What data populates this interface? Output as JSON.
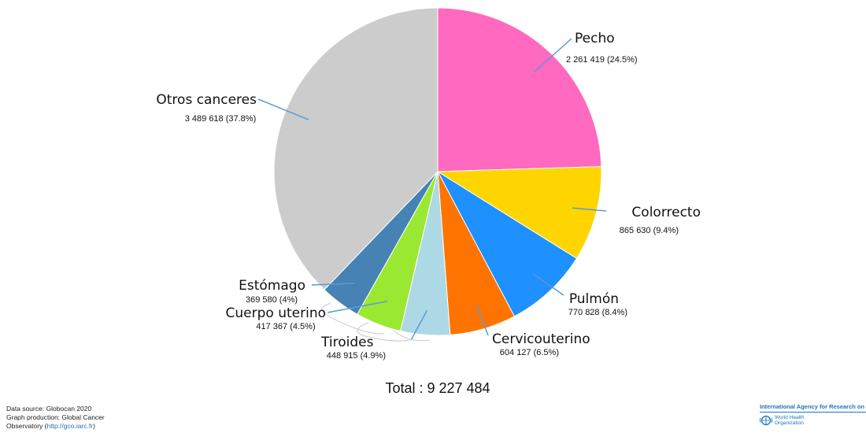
{
  "chart_data": {
    "type": "pie",
    "slices": [
      {
        "name": "Pecho",
        "value": 2261419,
        "value_label": "2 261 419 (24.5%)",
        "color": "#ff69c0"
      },
      {
        "name": "Colorrecto",
        "value": 865630,
        "value_label": "865 630 (9.4%)",
        "color": "#ffd500"
      },
      {
        "name": "Pulmón",
        "value": 770828,
        "value_label": "770 828 (8.4%)",
        "color": "#1e90ff"
      },
      {
        "name": "Cervicouterino",
        "value": 604127,
        "value_label": "604 127 (6.5%)",
        "color": "#ff7400"
      },
      {
        "name": "Tiroides",
        "value": 448915,
        "value_label": "448 915 (4.9%)",
        "color": "#add8e6"
      },
      {
        "name": "Cuerpo uterino",
        "value": 417367,
        "value_label": "417 367 (4.5%)",
        "color": "#9be832"
      },
      {
        "name": "Estómago",
        "value": 369580,
        "value_label": "369 580 (4%)",
        "color": "#4682b4"
      },
      {
        "name": "Otros canceres",
        "value": 3489618,
        "value_label": "3 489 618 (37.8%)",
        "color": "#cccccc"
      }
    ],
    "total_label": "Total : 9 227 484"
  },
  "credits": {
    "line1": "Data source: Globocan 2020",
    "line2": "Graph production: Global Cancer",
    "line3_prefix": "Observatory (",
    "line3_url": "http://gco.iarc.fr",
    "line3_suffix": ")"
  },
  "logo": {
    "iarc": "International Agency for Research on Cancer",
    "who_line1": "World Health",
    "who_line2": "Organization",
    "icon": "who-emblem-icon"
  }
}
